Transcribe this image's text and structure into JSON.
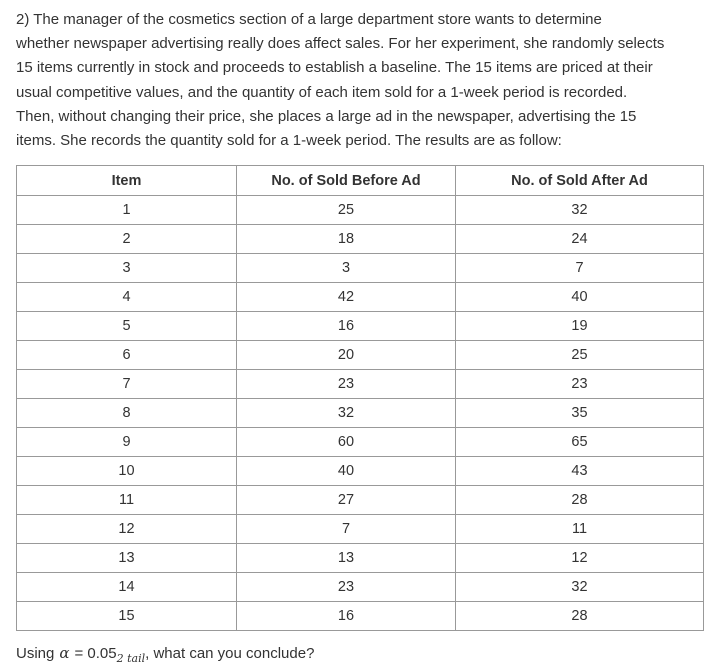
{
  "question": {
    "lines": [
      "2) The manager of the cosmetics section of a large department store wants to determine",
      "whether newspaper advertising really does affect sales. For her experiment, she randomly selects",
      "15 items currently in stock and proceeds to establish a baseline. The 15 items are priced at their",
      "usual competitive values, and the quantity of each item sold for a 1-week period is recorded.",
      "Then, without changing their price, she places a large ad in the newspaper, advertising the 15",
      "items. She records the quantity sold for a 1-week period. The results are as follow:"
    ]
  },
  "table": {
    "header": [
      "Item",
      "No. of Sold Before Ad",
      "No. of Sold After Ad"
    ],
    "rows": [
      [
        1,
        25,
        32
      ],
      [
        2,
        18,
        24
      ],
      [
        3,
        3,
        7
      ],
      [
        4,
        42,
        40
      ],
      [
        5,
        16,
        19
      ],
      [
        6,
        20,
        25
      ],
      [
        7,
        23,
        23
      ],
      [
        8,
        32,
        35
      ],
      [
        9,
        60,
        65
      ],
      [
        10,
        40,
        43
      ],
      [
        11,
        27,
        28
      ],
      [
        12,
        7,
        11
      ],
      [
        13,
        13,
        12
      ],
      [
        14,
        23,
        32
      ],
      [
        15,
        16,
        28
      ]
    ]
  },
  "footer": {
    "prefix": "Using",
    "alpha": "α",
    "equals": "= 0.05",
    "sub": "2 tail",
    "suffix": ", what can you conclude?"
  }
}
